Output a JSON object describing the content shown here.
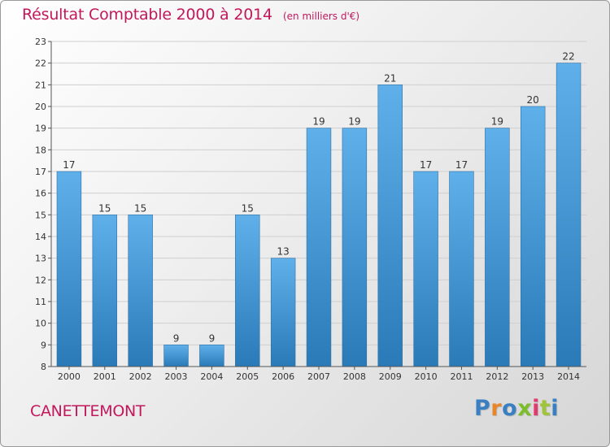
{
  "chart_data": {
    "type": "bar",
    "title": "Résultat Comptable 2000 à 2014",
    "subtitle": "(en milliers d'€)",
    "categories": [
      "2000",
      "2001",
      "2002",
      "2003",
      "2004",
      "2005",
      "2006",
      "2007",
      "2008",
      "2009",
      "2010",
      "2011",
      "2012",
      "2013",
      "2014"
    ],
    "values": [
      17,
      15,
      15,
      9,
      9,
      15,
      13,
      19,
      19,
      21,
      17,
      17,
      19,
      20,
      22
    ],
    "ylim": [
      8,
      23
    ],
    "yticks": [
      8,
      9,
      10,
      11,
      12,
      13,
      14,
      15,
      16,
      17,
      18,
      19,
      20,
      21,
      22,
      23
    ],
    "grid": true,
    "xlabel": "",
    "ylabel": ""
  },
  "footer": {
    "commune": "CANETTEMONT",
    "logo": "Proxiti"
  },
  "colors": {
    "title": "#c2185b",
    "bar_top": "#5fb0ea",
    "bar_bottom": "#2a7ab8",
    "grid": "#cfcfcf"
  }
}
